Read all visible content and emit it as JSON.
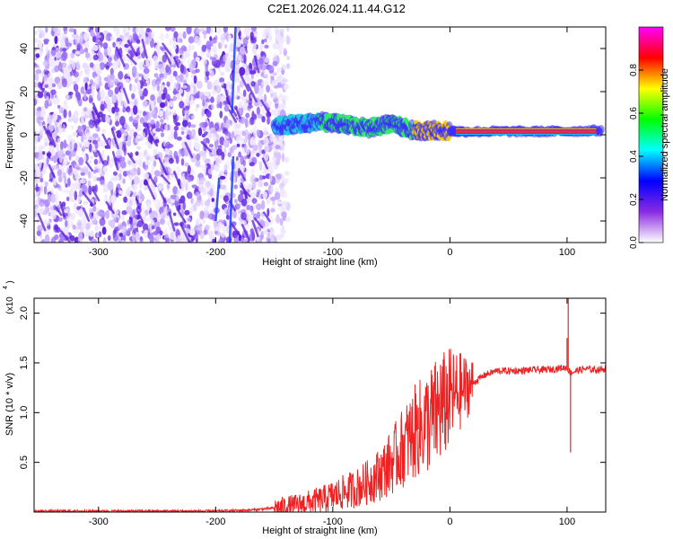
{
  "title": "C2E1.2026.024.11.44.G12",
  "chart_data": [
    {
      "type": "heatmap",
      "xlabel": "Height of straight line (km)",
      "ylabel": "Frequency (Hz)",
      "xlim": [
        -355,
        133
      ],
      "ylim": [
        -50,
        50
      ],
      "xticks": [
        -300,
        -200,
        -100,
        0,
        100
      ],
      "yticks": [
        -40,
        -20,
        0,
        20,
        40
      ],
      "colorbar": {
        "label": "Normalized spectral amplitude",
        "ticks": [
          0.0,
          0.2,
          0.4,
          0.6,
          0.8
        ],
        "range": [
          0,
          1
        ],
        "colormap": [
          "#ffffff",
          "#8a2be2",
          "#0000ff",
          "#00ffff",
          "#00ff00",
          "#ffff00",
          "#ff0000",
          "#ff00ff"
        ]
      },
      "noise_region": {
        "x": [
          -355,
          -138
        ],
        "freq": [
          -50,
          50
        ],
        "amplitude": 0.2
      },
      "signal_track": [
        {
          "x": -150,
          "f": 4,
          "amplitude": 0.5
        },
        {
          "x": -130,
          "f": 5,
          "amplitude": 0.5
        },
        {
          "x": -110,
          "f": 6,
          "amplitude": 0.55
        },
        {
          "x": -90,
          "f": 5,
          "amplitude": 0.55
        },
        {
          "x": -70,
          "f": 3,
          "amplitude": 0.55
        },
        {
          "x": -50,
          "f": 5,
          "amplitude": 0.6
        },
        {
          "x": -30,
          "f": 2,
          "amplitude": 0.65
        },
        {
          "x": -10,
          "f": 2,
          "amplitude": 0.7
        },
        {
          "x": 10,
          "f": 1.5,
          "amplitude": 0.85
        },
        {
          "x": 50,
          "f": 1.5,
          "amplitude": 0.9
        },
        {
          "x": 90,
          "f": 1.5,
          "amplitude": 0.9
        },
        {
          "x": 130,
          "f": 2,
          "amplitude": 0.5
        }
      ]
    },
    {
      "type": "line",
      "xlabel": "Height of straight line (km)",
      "ylabel": "SNR (10 * v/v)",
      "y_scale_note": "(x10",
      "y_scale_exponent": "4",
      "xlim": [
        -355,
        133
      ],
      "ylim": [
        0,
        2.15
      ],
      "xticks": [
        -300,
        -200,
        -100,
        0,
        100
      ],
      "yticks": [
        0.5,
        1.0,
        1.5,
        2.0
      ],
      "ytick_labels": [
        "0.5",
        "1.0",
        "1.5",
        "2.0"
      ],
      "series": [
        {
          "color": "#ee2222",
          "x": [
            -355,
            -300,
            -250,
            -200,
            -170,
            -150,
            -130,
            -110,
            -100,
            -90,
            -80,
            -70,
            -60,
            -50,
            -40,
            -30,
            -20,
            -10,
            0,
            10,
            20,
            30,
            40,
            50,
            60,
            70,
            80,
            90,
            95,
            100,
            103,
            108,
            115,
            125,
            133
          ],
          "y": [
            0.01,
            0.01,
            0.01,
            0.01,
            0.02,
            0.04,
            0.07,
            0.12,
            0.16,
            0.2,
            0.24,
            0.3,
            0.38,
            0.5,
            0.65,
            0.8,
            0.9,
            1.0,
            1.15,
            1.22,
            1.3,
            1.38,
            1.42,
            1.42,
            1.42,
            1.43,
            1.43,
            1.44,
            1.45,
            1.45,
            1.4,
            1.42,
            1.44,
            1.43,
            1.44
          ],
          "spikes": [
            {
              "x": -8,
              "y": 1.48
            },
            {
              "x": -27,
              "y": 1.05
            },
            {
              "x": 101,
              "y": 2.15
            },
            {
              "x": 103,
              "y": 0.6
            },
            {
              "x": 100,
              "y": 1.75
            }
          ]
        }
      ]
    }
  ]
}
